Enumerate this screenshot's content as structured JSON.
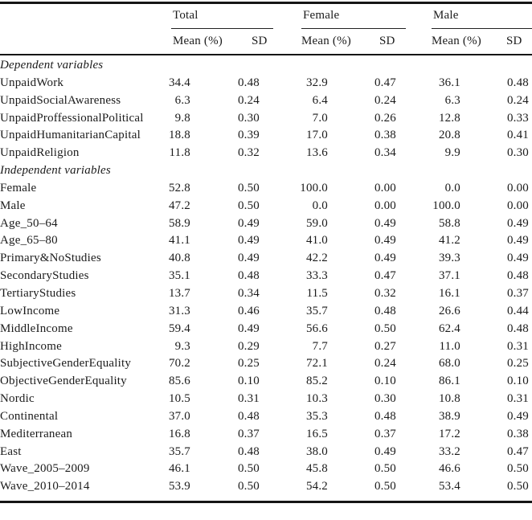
{
  "table": {
    "groups": [
      {
        "label": "Total"
      },
      {
        "label": "Female"
      },
      {
        "label": "Male"
      }
    ],
    "subheader": {
      "mean": "Mean (%)",
      "sd": "SD"
    },
    "sections": [
      {
        "title": "Dependent variables",
        "rows": [
          {
            "label": "UnpaidWork",
            "values": [
              "34.4",
              "0.48",
              "32.9",
              "0.47",
              "36.1",
              "0.48"
            ]
          },
          {
            "label": "UnpaidSocialAwareness",
            "values": [
              "6.3",
              "0.24",
              "6.4",
              "0.24",
              "6.3",
              "0.24"
            ]
          },
          {
            "label": "UnpaidProffessionalPolitical",
            "values": [
              "9.8",
              "0.30",
              "7.0",
              "0.26",
              "12.8",
              "0.33"
            ]
          },
          {
            "label": "UnpaidHumanitarianCapital",
            "values": [
              "18.8",
              "0.39",
              "17.0",
              "0.38",
              "20.8",
              "0.41"
            ]
          },
          {
            "label": "UnpaidReligion",
            "values": [
              "11.8",
              "0.32",
              "13.6",
              "0.34",
              "9.9",
              "0.30"
            ]
          }
        ]
      },
      {
        "title": "Independent variables",
        "rows": [
          {
            "label": "Female",
            "values": [
              "52.8",
              "0.50",
              "100.0",
              "0.00",
              "0.0",
              "0.00"
            ]
          },
          {
            "label": "Male",
            "values": [
              "47.2",
              "0.50",
              "0.0",
              "0.00",
              "100.0",
              "0.00"
            ]
          },
          {
            "label": "Age_50–64",
            "values": [
              "58.9",
              "0.49",
              "59.0",
              "0.49",
              "58.8",
              "0.49"
            ]
          },
          {
            "label": "Age_65–80",
            "values": [
              "41.1",
              "0.49",
              "41.0",
              "0.49",
              "41.2",
              "0.49"
            ]
          },
          {
            "label": "Primary&NoStudies",
            "values": [
              "40.8",
              "0.49",
              "42.2",
              "0.49",
              "39.3",
              "0.49"
            ]
          },
          {
            "label": "SecondaryStudies",
            "values": [
              "35.1",
              "0.48",
              "33.3",
              "0.47",
              "37.1",
              "0.48"
            ]
          },
          {
            "label": "TertiaryStudies",
            "values": [
              "13.7",
              "0.34",
              "11.5",
              "0.32",
              "16.1",
              "0.37"
            ]
          },
          {
            "label": "LowIncome",
            "values": [
              "31.3",
              "0.46",
              "35.7",
              "0.48",
              "26.6",
              "0.44"
            ]
          },
          {
            "label": "MiddleIncome",
            "values": [
              "59.4",
              "0.49",
              "56.6",
              "0.50",
              "62.4",
              "0.48"
            ]
          },
          {
            "label": "HighIncome",
            "values": [
              "9.3",
              "0.29",
              "7.7",
              "0.27",
              "11.0",
              "0.31"
            ]
          },
          {
            "label": "SubjectiveGenderEquality",
            "values": [
              "70.2",
              "0.25",
              "72.1",
              "0.24",
              "68.0",
              "0.25"
            ]
          },
          {
            "label": "ObjectiveGenderEquality",
            "values": [
              "85.6",
              "0.10",
              "85.2",
              "0.10",
              "86.1",
              "0.10"
            ]
          },
          {
            "label": "Nordic",
            "values": [
              "10.5",
              "0.31",
              "10.3",
              "0.30",
              "10.8",
              "0.31"
            ]
          },
          {
            "label": "Continental",
            "values": [
              "37.0",
              "0.48",
              "35.3",
              "0.48",
              "38.9",
              "0.49"
            ]
          },
          {
            "label": "Mediterranean",
            "values": [
              "16.8",
              "0.37",
              "16.5",
              "0.37",
              "17.2",
              "0.38"
            ]
          },
          {
            "label": "East",
            "values": [
              "35.7",
              "0.48",
              "38.0",
              "0.49",
              "33.2",
              "0.47"
            ]
          },
          {
            "label": "Wave_2005–2009",
            "values": [
              "46.1",
              "0.50",
              "45.8",
              "0.50",
              "46.6",
              "0.50"
            ]
          },
          {
            "label": "Wave_2010–2014",
            "values": [
              "53.9",
              "0.50",
              "54.2",
              "0.50",
              "53.4",
              "0.50"
            ]
          }
        ]
      }
    ]
  }
}
